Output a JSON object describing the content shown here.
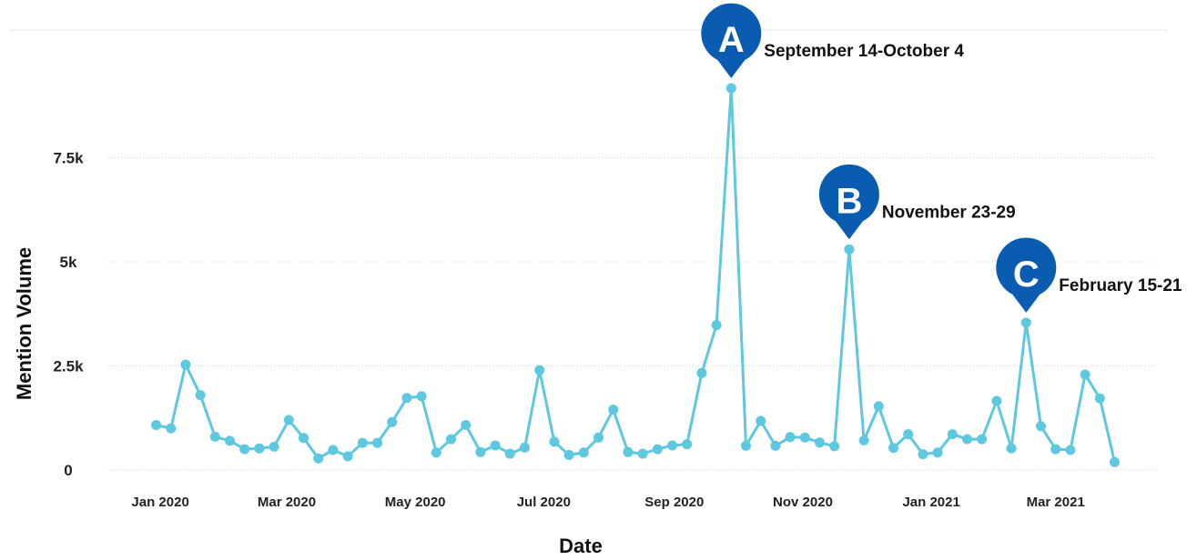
{
  "chart_data": {
    "type": "line",
    "xlabel": "Date",
    "ylabel": "Mention Volume",
    "x_tick_labels": [
      "Jan 2020",
      "Mar 2020",
      "May 2020",
      "Jul 2020",
      "Sep 2020",
      "Nov 2020",
      "Jan 2021",
      "Mar 2021"
    ],
    "y_tick_labels": [
      "0",
      "2.5k",
      "5k",
      "7.5k"
    ],
    "ylim": [
      0,
      10500
    ],
    "grid": true,
    "color": "#5dc8e0",
    "x": [
      "2019-12-30",
      "2020-01-06",
      "2020-01-13",
      "2020-01-20",
      "2020-01-27",
      "2020-02-03",
      "2020-02-10",
      "2020-02-17",
      "2020-02-24",
      "2020-03-02",
      "2020-03-09",
      "2020-03-16",
      "2020-03-23",
      "2020-03-30",
      "2020-04-06",
      "2020-04-13",
      "2020-04-20",
      "2020-04-27",
      "2020-05-04",
      "2020-05-11",
      "2020-05-18",
      "2020-05-25",
      "2020-06-01",
      "2020-06-08",
      "2020-06-15",
      "2020-06-22",
      "2020-06-29",
      "2020-07-06",
      "2020-07-13",
      "2020-07-20",
      "2020-07-27",
      "2020-08-03",
      "2020-08-10",
      "2020-08-17",
      "2020-08-24",
      "2020-08-31",
      "2020-09-07",
      "2020-09-14",
      "2020-09-21",
      "2020-09-28",
      "2020-10-05",
      "2020-10-12",
      "2020-10-19",
      "2020-10-26",
      "2020-11-02",
      "2020-11-09",
      "2020-11-16",
      "2020-11-23",
      "2020-11-30",
      "2020-12-07",
      "2020-12-14",
      "2020-12-21",
      "2020-12-28",
      "2021-01-04",
      "2021-01-11",
      "2021-01-18",
      "2021-01-25",
      "2021-02-01",
      "2021-02-08",
      "2021-02-15",
      "2021-02-22",
      "2021-03-01",
      "2021-03-08",
      "2021-03-15",
      "2021-03-22",
      "2021-03-29"
    ],
    "values": [
      1080,
      1000,
      2530,
      1800,
      800,
      700,
      500,
      520,
      560,
      1200,
      770,
      280,
      480,
      330,
      650,
      650,
      1150,
      1730,
      1770,
      420,
      740,
      1080,
      430,
      590,
      390,
      540,
      2400,
      680,
      360,
      420,
      780,
      1450,
      430,
      390,
      500,
      590,
      620,
      2330,
      3480,
      9170,
      580,
      1180,
      580,
      790,
      780,
      660,
      570,
      5300,
      710,
      1530,
      530,
      860,
      380,
      420,
      860,
      740,
      740,
      1660,
      520,
      3540,
      1050,
      500,
      480,
      2290,
      1720,
      190
    ],
    "annotations": [
      {
        "marker": "A",
        "text": "September 14-October 4",
        "x": "2020-09-28",
        "y": 9170
      },
      {
        "marker": "B",
        "text": "November 23-29",
        "x": "2020-11-23",
        "y": 5300
      },
      {
        "marker": "C",
        "text": "February 15-21",
        "x": "2021-02-15",
        "y": 3540
      }
    ]
  }
}
